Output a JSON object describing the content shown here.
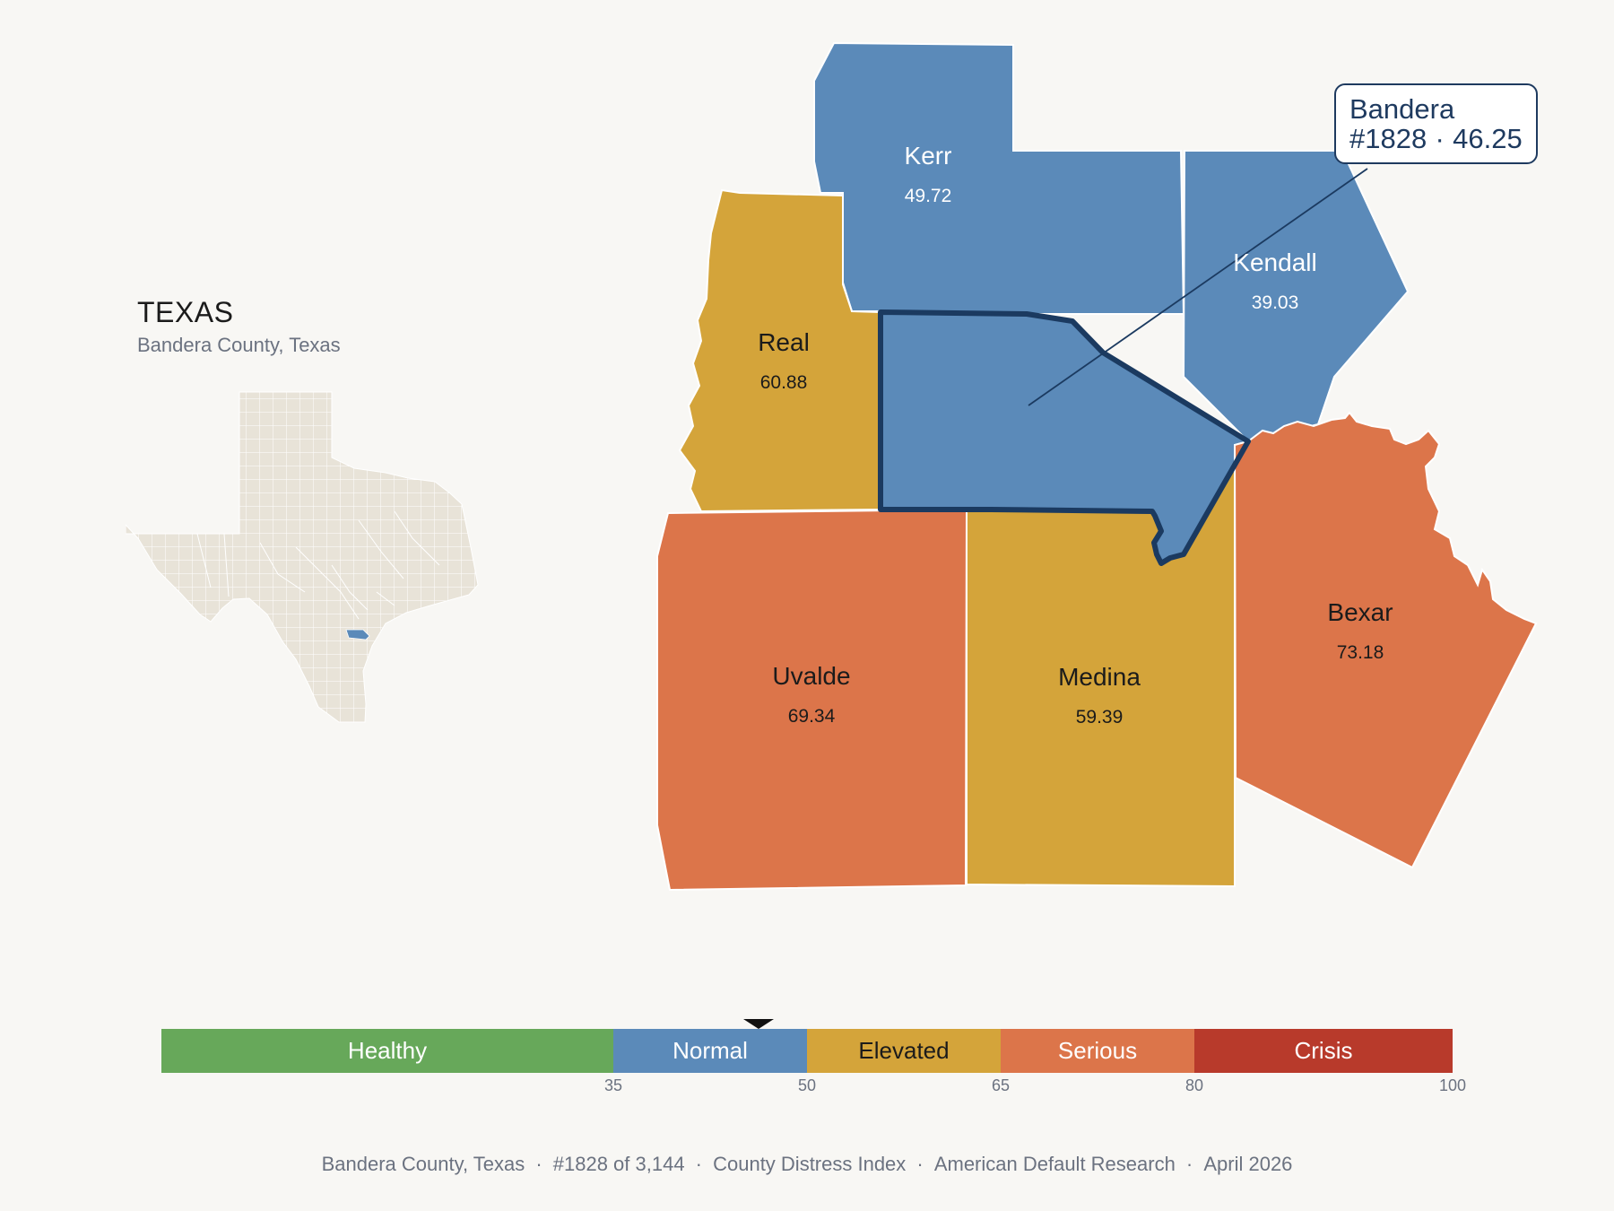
{
  "inset": {
    "state_title": "TEXAS",
    "subtitle": "Bandera County, Texas",
    "base_color": "#e8e3d8",
    "highlight_color": "#5b8ab9"
  },
  "counties": [
    {
      "name": "Kerr",
      "value": "49.72",
      "category": "Normal",
      "color": "#5b8ab9"
    },
    {
      "name": "Kendall",
      "value": "39.03",
      "category": "Normal",
      "color": "#5b8ab9"
    },
    {
      "name": "Real",
      "value": "60.88",
      "category": "Elevated",
      "color": "#d4a43a"
    },
    {
      "name": "Bandera",
      "value": "46.25",
      "category": "Normal",
      "color": "#5b8ab9",
      "selected": true
    },
    {
      "name": "Uvalde",
      "value": "69.34",
      "category": "Serious",
      "color": "#dc754a"
    },
    {
      "name": "Medina",
      "value": "59.39",
      "category": "Elevated",
      "color": "#d4a43a"
    },
    {
      "name": "Bexar",
      "value": "73.18",
      "category": "Serious",
      "color": "#dc754a"
    }
  ],
  "callout": {
    "county": "Bandera",
    "rank": "#1828",
    "separator": "·",
    "value": "46.25"
  },
  "scale": {
    "min": 0,
    "max": 100,
    "marker_value": 46.25,
    "bands": [
      {
        "label": "Healthy",
        "from": 0,
        "to": 35,
        "color": "#67a85a"
      },
      {
        "label": "Normal",
        "from": 35,
        "to": 50,
        "color": "#5b8ab9"
      },
      {
        "label": "Elevated",
        "from": 50,
        "to": 65,
        "color": "#d4a43a"
      },
      {
        "label": "Serious",
        "from": 65,
        "to": 80,
        "color": "#dc754a"
      },
      {
        "label": "Crisis",
        "from": 80,
        "to": 100,
        "color": "#b83a2b"
      }
    ],
    "ticks": [
      "35",
      "50",
      "65",
      "80",
      "100"
    ]
  },
  "footer": {
    "parts": [
      "Bandera County, Texas",
      "#1828 of 3,144",
      "County Distress Index",
      "American Default Research",
      "April 2026"
    ],
    "separator": "·"
  }
}
